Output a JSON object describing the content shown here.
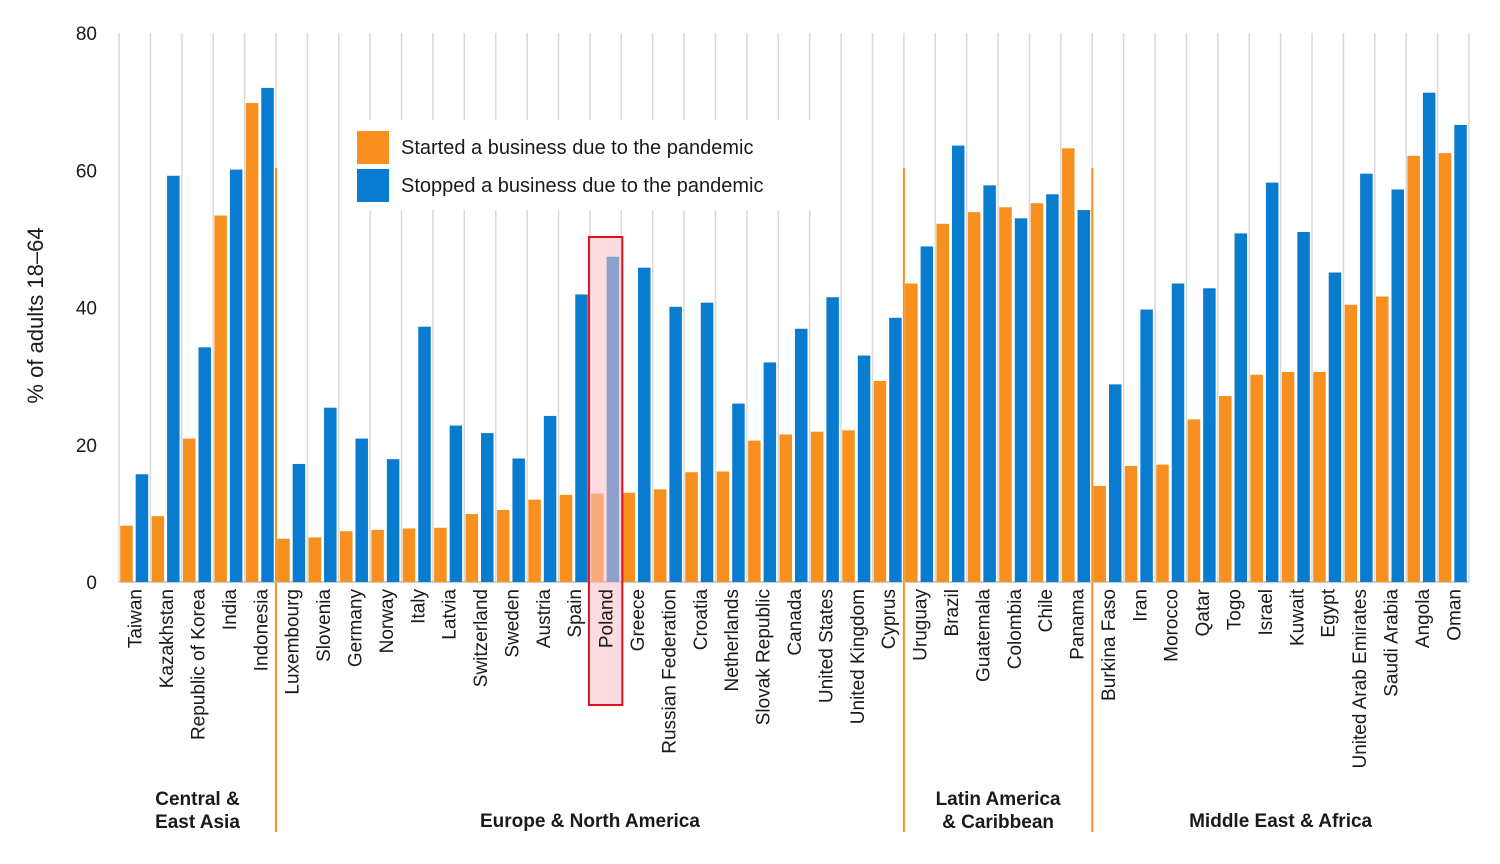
{
  "chart_data": {
    "type": "bar",
    "ylabel": "% of adults 18–64",
    "ylim": [
      0,
      80
    ],
    "yticks": [
      0,
      20,
      40,
      60,
      80
    ],
    "grid": "vertical lines between categories",
    "legend_placement": "top-center",
    "categories": [
      "Taiwan",
      "Kazakhstan",
      "Republic of Korea",
      "India",
      "Indonesia",
      "Luxembourg",
      "Slovenia",
      "Germany",
      "Norway",
      "Italy",
      "Latvia",
      "Switzerland",
      "Sweden",
      "Austria",
      "Spain",
      "Poland",
      "Greece",
      "Russian Federation",
      "Croatia",
      "Netherlands",
      "Slovak Republic",
      "Canada",
      "United States",
      "United Kingdom",
      "Cyprus",
      "Uruguay",
      "Brazil",
      "Guatemala",
      "Colombia",
      "Chile",
      "Panama",
      "Burkina Faso",
      "Iran",
      "Morocco",
      "Qatar",
      "Togo",
      "Israel",
      "Kuwait",
      "Egypt",
      "United Arab Emirates",
      "Saudi Arabia",
      "Angola",
      "Oman"
    ],
    "series": [
      {
        "name": "Started a business due to the pandemic",
        "color": "#f7901e",
        "values": [
          8.2,
          9.6,
          20.9,
          53.4,
          69.8,
          6.3,
          6.5,
          7.4,
          7.6,
          7.8,
          7.9,
          9.9,
          10.5,
          12.0,
          12.7,
          12.9,
          13.0,
          13.5,
          16.0,
          16.1,
          20.6,
          21.5,
          21.9,
          22.1,
          29.3,
          43.5,
          52.2,
          53.9,
          54.6,
          55.2,
          63.2,
          14.0,
          16.9,
          17.1,
          23.7,
          27.1,
          30.2,
          30.6,
          30.6,
          40.4,
          41.6,
          62.1,
          62.5
        ]
      },
      {
        "name": "Stopped a business due to the pandemic",
        "color": "#0a7ccf",
        "values": [
          15.7,
          59.2,
          34.2,
          60.1,
          72.0,
          17.2,
          25.4,
          20.9,
          17.9,
          37.2,
          22.8,
          21.7,
          18.0,
          24.2,
          41.9,
          47.4,
          45.8,
          40.1,
          40.7,
          26.0,
          32.0,
          36.9,
          41.5,
          33.0,
          38.5,
          48.9,
          63.6,
          57.8,
          53.0,
          56.5,
          54.2,
          28.8,
          39.7,
          43.5,
          42.8,
          50.8,
          58.2,
          51.0,
          45.1,
          59.5,
          57.2,
          71.3,
          66.6
        ]
      }
    ],
    "regions": [
      {
        "name": "Central &\nEast Asia",
        "start": 0,
        "end": 4
      },
      {
        "name": "Europe & North America",
        "start": 5,
        "end": 24
      },
      {
        "name": "Latin America\n& Caribbean",
        "start": 25,
        "end": 30
      },
      {
        "name": "Middle East & Africa",
        "start": 31,
        "end": 42
      }
    ],
    "highlight": "Poland",
    "colors": {
      "grid": "#d9d9d9",
      "axis": "#bfbfbf",
      "region_separator": "#f7901e",
      "highlight_stroke": "#e0121d",
      "highlight_fill": "#f9c0c7"
    }
  }
}
